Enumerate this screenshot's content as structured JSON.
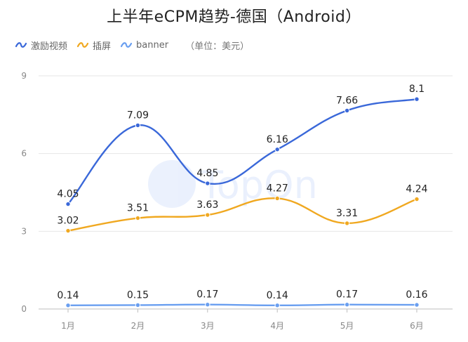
{
  "title": "上半年eCPM趋势-德国（Android）",
  "unit_note": "（单位：美元）",
  "watermark": "TopOn",
  "colors": {
    "video": "#3a68d9",
    "interstitial": "#f0a820",
    "banner": "#6a9ff0",
    "grid": "#e6e6e6",
    "axis_text": "#888888"
  },
  "chart_data": {
    "type": "line",
    "title": "上半年eCPM趋势-德国（Android）",
    "categories": [
      "1月",
      "2月",
      "3月",
      "4月",
      "5月",
      "6月"
    ],
    "ylim": [
      0,
      9
    ],
    "yticks": [
      "0",
      "3",
      "6",
      "9"
    ],
    "grid": true,
    "legend": "top-left",
    "series": [
      {
        "name": "激励视频",
        "values": [
          4.05,
          7.09,
          4.85,
          6.16,
          7.66,
          8.1
        ],
        "labels": [
          "4.05",
          "7.09",
          "4.85",
          "6.16",
          "7.66",
          "8.1"
        ]
      },
      {
        "name": "插屏",
        "values": [
          3.02,
          3.51,
          3.63,
          4.27,
          3.31,
          4.24
        ],
        "labels": [
          "3.02",
          "3.51",
          "3.63",
          "4.27",
          "3.31",
          "4.24"
        ]
      },
      {
        "name": "banner",
        "values": [
          0.14,
          0.15,
          0.17,
          0.14,
          0.17,
          0.16
        ],
        "labels": [
          "0.14",
          "0.15",
          "0.17",
          "0.14",
          "0.17",
          "0.16"
        ]
      }
    ]
  }
}
